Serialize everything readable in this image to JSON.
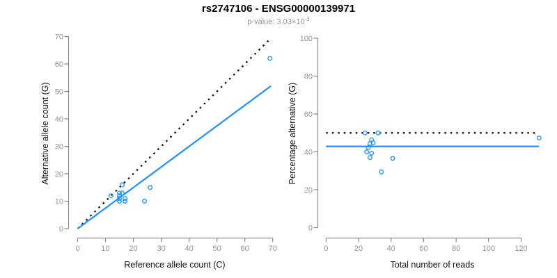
{
  "header": {
    "title": "rs2747106 - ENSG00000139971",
    "subtitle_prefix": "p-value: 3.03×10",
    "subtitle_exponent": "-3"
  },
  "colors": {
    "points": "#1E90FF",
    "fit_line": "#1E90FF",
    "reference_line": "#000000",
    "axis": "#8a8a8a",
    "tick_label": "#909090",
    "axis_title": "#111111",
    "title": "#000000",
    "subtitle": "#8f8f8f",
    "background": "#ffffff"
  },
  "chart_data": [
    {
      "type": "scatter",
      "name": "allele-counts",
      "xlabel": "Reference allele count (C)",
      "ylabel": "Alternative allele count (G)",
      "xlim": [
        0,
        70
      ],
      "ylim": [
        0,
        70
      ],
      "xticks": [
        0,
        10,
        20,
        30,
        40,
        50,
        60,
        70
      ],
      "yticks": [
        0,
        10,
        20,
        30,
        40,
        50,
        60,
        70
      ],
      "grid": false,
      "legend": "none",
      "points": [
        [
          12,
          12
        ],
        [
          15,
          13
        ],
        [
          16,
          13
        ],
        [
          15,
          12
        ],
        [
          15,
          11
        ],
        [
          15,
          10
        ],
        [
          17,
          11
        ],
        [
          17,
          10
        ],
        [
          26,
          15
        ],
        [
          24,
          10
        ],
        [
          16,
          16
        ],
        [
          69,
          62
        ]
      ],
      "lines": [
        {
          "role": "identity-line",
          "style": "dotted",
          "color_key": "reference_line",
          "from": [
            0,
            0
          ],
          "to": [
            69,
            69
          ]
        },
        {
          "role": "fit-line",
          "style": "solid",
          "color_key": "fit_line",
          "from": [
            0,
            0
          ],
          "to": [
            69.4,
            52.0
          ]
        }
      ]
    },
    {
      "type": "scatter",
      "name": "percentage-alternative",
      "xlabel": "Total number of reads",
      "ylabel": "Percentage alternative (G)",
      "xlim": [
        0,
        131
      ],
      "ylim": [
        0,
        100
      ],
      "xticks": [
        0,
        20,
        40,
        60,
        80,
        100,
        120
      ],
      "yticks": [
        0,
        20,
        40,
        60,
        80,
        100
      ],
      "grid": false,
      "legend": "none",
      "points": [
        [
          24,
          50.0
        ],
        [
          28,
          46.4
        ],
        [
          29,
          44.8
        ],
        [
          27,
          44.4
        ],
        [
          26,
          42.3
        ],
        [
          25,
          40.0
        ],
        [
          28,
          39.3
        ],
        [
          27,
          37.0
        ],
        [
          41,
          36.6
        ],
        [
          34,
          29.4
        ],
        [
          32,
          50.0
        ],
        [
          131,
          47.3
        ]
      ],
      "lines": [
        {
          "role": "null-line-50pct",
          "style": "dotted",
          "color_key": "reference_line",
          "from": [
            0,
            50
          ],
          "to": [
            131,
            50
          ]
        },
        {
          "role": "mean-ratio-line",
          "style": "solid",
          "color_key": "fit_line",
          "from": [
            0,
            42.9
          ],
          "to": [
            131,
            42.9
          ]
        }
      ]
    }
  ]
}
